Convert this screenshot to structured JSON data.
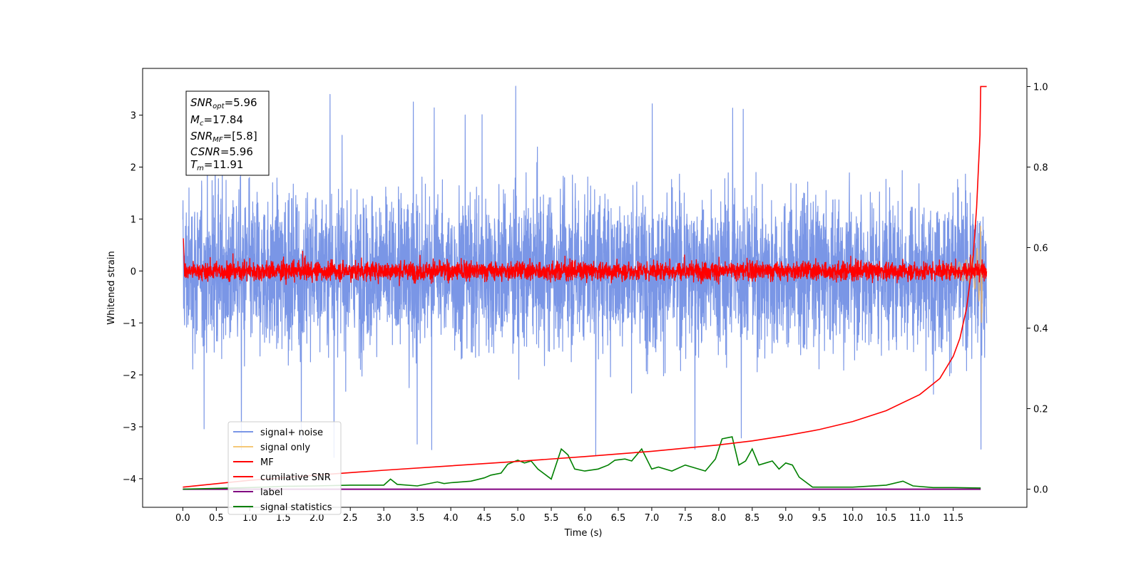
{
  "chart_data": {
    "type": "line",
    "title": "",
    "xlabel": "Time (s)",
    "ylabel": "Whitened strain",
    "xlim": [
      -0.6,
      12.6
    ],
    "ylim": [
      -4.55,
      3.9
    ],
    "y2lim": [
      -0.045,
      1.045
    ],
    "x_ticks": [
      "0.0",
      "0.5",
      "1.0",
      "1.5",
      "2.0",
      "2.5",
      "3.0",
      "3.5",
      "4.0",
      "4.5",
      "5.0",
      "5.5",
      "6.0",
      "6.5",
      "7.0",
      "7.5",
      "8.0",
      "8.5",
      "9.0",
      "9.5",
      "10.0",
      "10.5",
      "11.0",
      "11.5"
    ],
    "y_ticks": [
      "−4",
      "−3",
      "−2",
      "−1",
      "0",
      "1",
      "2",
      "3"
    ],
    "y2_ticks": [
      "0.0",
      "0.2",
      "0.4",
      "0.6",
      "0.8",
      "1.0"
    ],
    "legend_position": "lower-left",
    "annotation": {
      "snr_opt": {
        "base": "SNR",
        "sub": "opt",
        "value": "=5.96"
      },
      "mc": {
        "base": "M",
        "sub": "c",
        "value": "=17.84"
      },
      "snr_mf": {
        "base": "SNR",
        "sub": "MF",
        "value": "=[5.8]"
      },
      "csnr": {
        "base": "CSNR",
        "sub": "",
        "value": "=5.96"
      },
      "tm": {
        "base": "T",
        "sub": "m",
        "value": "=11.91"
      }
    },
    "series": [
      {
        "name": "signal+ noise",
        "color": "#7a96e6",
        "axis": "left",
        "note": "noise band approx -2.5 to 2.5 with spikes to 3.6 / -3.7"
      },
      {
        "name": "signal only",
        "color": "#f5c878",
        "axis": "left"
      },
      {
        "name": "MF",
        "color": "#ff0000",
        "axis": "left"
      },
      {
        "name": "cumilative SNR",
        "color": "#ff0000",
        "axis": "right",
        "x": [
          0.0,
          1.0,
          2.0,
          3.0,
          4.0,
          5.0,
          6.0,
          7.0,
          8.0,
          8.5,
          9.0,
          9.5,
          10.0,
          10.5,
          11.0,
          11.3,
          11.5,
          11.6,
          11.7,
          11.8,
          11.85,
          11.9,
          11.91,
          12.0
        ],
        "y": [
          0.005,
          0.022,
          0.035,
          0.047,
          0.058,
          0.069,
          0.081,
          0.094,
          0.11,
          0.12,
          0.133,
          0.148,
          0.168,
          0.195,
          0.235,
          0.275,
          0.33,
          0.375,
          0.45,
          0.58,
          0.7,
          0.88,
          1.0,
          1.0
        ]
      },
      {
        "name": "label",
        "color": "#800080",
        "axis": "right",
        "x": [
          0.0,
          11.91
        ],
        "y": [
          0.0,
          0.0
        ]
      },
      {
        "name": "signal statistics",
        "color": "#008000",
        "axis": "right",
        "x": [
          0.0,
          0.5,
          1.0,
          1.5,
          2.0,
          2.5,
          3.0,
          3.1,
          3.2,
          3.5,
          3.8,
          3.9,
          4.0,
          4.3,
          4.5,
          4.6,
          4.75,
          4.85,
          5.0,
          5.1,
          5.2,
          5.3,
          5.5,
          5.65,
          5.75,
          5.85,
          6.0,
          6.2,
          6.35,
          6.45,
          6.6,
          6.7,
          6.85,
          7.0,
          7.1,
          7.3,
          7.5,
          7.6,
          7.8,
          7.95,
          8.05,
          8.2,
          8.3,
          8.4,
          8.5,
          8.6,
          8.7,
          8.8,
          8.9,
          9.0,
          9.1,
          9.2,
          9.4,
          9.6,
          10.0,
          10.5,
          10.75,
          10.9,
          11.2,
          11.5,
          11.91
        ],
        "y": [
          0.0,
          0.002,
          0.004,
          0.007,
          0.008,
          0.01,
          0.01,
          0.025,
          0.012,
          0.008,
          0.018,
          0.014,
          0.016,
          0.02,
          0.028,
          0.035,
          0.04,
          0.062,
          0.072,
          0.065,
          0.07,
          0.05,
          0.025,
          0.1,
          0.085,
          0.05,
          0.045,
          0.05,
          0.06,
          0.072,
          0.075,
          0.07,
          0.1,
          0.05,
          0.055,
          0.045,
          0.06,
          0.055,
          0.045,
          0.075,
          0.125,
          0.13,
          0.06,
          0.07,
          0.1,
          0.06,
          0.065,
          0.07,
          0.05,
          0.065,
          0.06,
          0.03,
          0.005,
          0.005,
          0.005,
          0.01,
          0.02,
          0.008,
          0.004,
          0.004,
          0.003
        ]
      }
    ]
  }
}
